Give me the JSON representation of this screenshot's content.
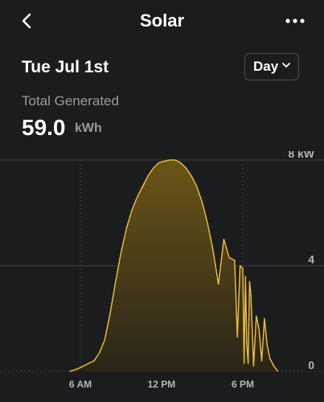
{
  "header": {
    "title": "Solar",
    "back_icon": "chevron-left-icon",
    "more_icon": "more-dots-icon"
  },
  "date": "Tue Jul 1st",
  "range_select": {
    "value": "Day"
  },
  "summary": {
    "label": "Total Generated",
    "value": "59.0",
    "unit": "kWh"
  },
  "colors": {
    "background": "#1b1c1e",
    "line": "#e8b93a",
    "fill_top": "#6a5418",
    "fill_bottom": "#2a2518",
    "grid": "#3a3b3e"
  },
  "chart_data": {
    "type": "area",
    "x_tick_labels": [
      "6 AM",
      "12 PM",
      "6 PM"
    ],
    "y_tick_labels": [
      "8 kW",
      "4",
      "0"
    ],
    "ylim": [
      0,
      8
    ],
    "xlim": [
      0,
      24
    ],
    "x": [
      5.2,
      5.8,
      6.2,
      6.6,
      7.0,
      7.4,
      7.8,
      8.2,
      8.6,
      9.0,
      9.4,
      9.8,
      10.2,
      10.6,
      11.0,
      11.4,
      11.8,
      12.2,
      12.6,
      13.0,
      13.4,
      13.8,
      14.2,
      14.6,
      15.0,
      15.4,
      15.8,
      16.2,
      16.6,
      17.0,
      17.4,
      17.6,
      17.8,
      18.0,
      18.1,
      18.2,
      18.3,
      18.4,
      18.5,
      18.6,
      18.8,
      19.0,
      19.2,
      19.4,
      19.6,
      19.8,
      20.0,
      20.3,
      20.6
    ],
    "y": [
      0,
      0.1,
      0.2,
      0.3,
      0.4,
      0.7,
      1.2,
      2.2,
      3.4,
      4.5,
      5.4,
      6.1,
      6.6,
      7.0,
      7.4,
      7.7,
      7.9,
      7.95,
      8.0,
      8.0,
      7.9,
      7.7,
      7.4,
      7.0,
      6.4,
      5.6,
      4.6,
      3.3,
      5.0,
      4.3,
      4.2,
      1.3,
      4.0,
      3.9,
      0.3,
      3.6,
      1.0,
      0.3,
      3.4,
      2.9,
      0.2,
      2.1,
      1.6,
      0.4,
      2.0,
      1.0,
      0.5,
      0.2,
      0
    ]
  }
}
